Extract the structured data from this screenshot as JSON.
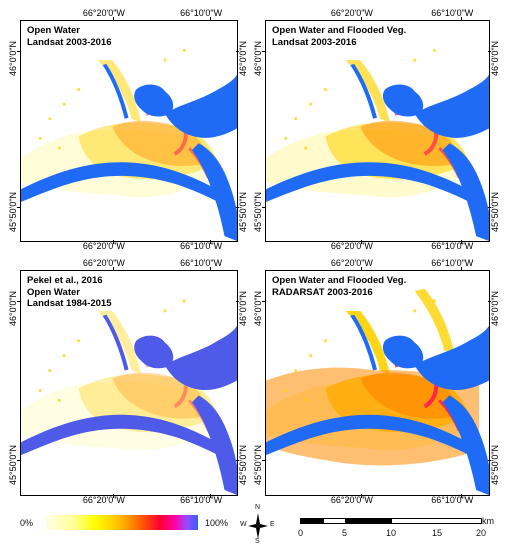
{
  "panels": [
    {
      "id": "a",
      "lines": [
        "Open Water",
        "Landsat 2003-2016"
      ],
      "lon_ticks": [
        "66°20'0\"W",
        "66°10'0\"W"
      ],
      "lat_ticks": [
        "46°0'0\"N",
        "45°50'0\"N"
      ],
      "style": "landsat_ow"
    },
    {
      "id": "b",
      "lines": [
        "Open Water and Flooded Veg.",
        "Landsat 2003-2016"
      ],
      "lon_ticks": [
        "66°20'0\"W",
        "66°10'0\"W"
      ],
      "lat_ticks": [
        "46°0'0\"N",
        "45°50'0\"N"
      ],
      "style": "landsat_fv"
    },
    {
      "id": "c",
      "lines": [
        "Pekel et al., 2016",
        "Open Water",
        "Landsat 1984-2015"
      ],
      "lon_ticks": [
        "66°20'0\"W",
        "66°10'0\"W"
      ],
      "lat_ticks": [
        "46°0'0\"N",
        "45°50'0\"N"
      ],
      "style": "pekel"
    },
    {
      "id": "d",
      "lines": [
        "Open Water and Flooded Veg.",
        "RADARSAT 2003-2016"
      ],
      "lon_ticks": [
        "66°20'0\"W",
        "66°10'0\"W"
      ],
      "lat_ticks": [
        "46°0'0\"N",
        "45°50'0\"N"
      ],
      "style": "radarsat"
    }
  ],
  "legend": {
    "min_label": "0%",
    "max_label": "100%"
  },
  "compass": {
    "n": "N",
    "s": "S",
    "e": "E",
    "w": "W"
  },
  "scale": {
    "ticks": [
      "0",
      "5",
      "10",
      "15",
      "20"
    ],
    "unit": "km"
  },
  "colors": {
    "water": "#1f6bf5",
    "flood_high": "#ff1a55",
    "flood_mid": "#ff8a00",
    "flood_low": "#ffd200",
    "flood_faint": "#fff7a0",
    "pekel_water": "#4e5be8"
  }
}
